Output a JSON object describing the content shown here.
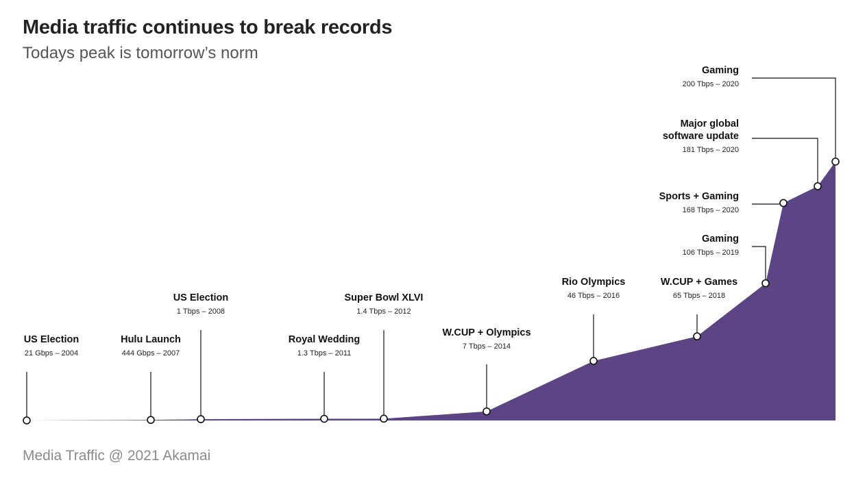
{
  "header": {
    "title": "Media traffic continues to break records",
    "subtitle": "Todays peak is tomorrow’s norm"
  },
  "footer": {
    "source": "Media Traffic @ 2021 Akamai"
  },
  "colors": {
    "area": "#5c4485",
    "text": "#111111",
    "subtitle": "#555555",
    "footer": "#8a8a8a"
  },
  "chart_data": {
    "type": "area",
    "title": "Media traffic continues to break records",
    "subtitle": "Todays peak is tomorrow’s norm",
    "unit": "Tbps",
    "grid": false,
    "points": [
      {
        "event": "US Election",
        "value_label": "21 Gbps – 2004",
        "year": 2004,
        "value_tbps": 0.021
      },
      {
        "event": "Hulu Launch",
        "value_label": "444 Gbps – 2007",
        "year": 2007,
        "value_tbps": 0.444
      },
      {
        "event": "US Election",
        "value_label": "1 Tbps – 2008",
        "year": 2008,
        "value_tbps": 1
      },
      {
        "event": "Royal Wedding",
        "value_label": "1.3 Tbps – 2011",
        "year": 2011,
        "value_tbps": 1.3
      },
      {
        "event": "Super Bowl XLVI",
        "value_label": "1.4 Tbps – 2012",
        "year": 2012,
        "value_tbps": 1.4
      },
      {
        "event": "W.CUP + Olympics",
        "value_label": "7 Tbps – 2014",
        "year": 2014,
        "value_tbps": 7
      },
      {
        "event": "Rio Olympics",
        "value_label": "46 Tbps – 2016",
        "year": 2016,
        "value_tbps": 46
      },
      {
        "event": "W.CUP + Games",
        "value_label": "65 Tbps – 2018",
        "year": 2018,
        "value_tbps": 65
      },
      {
        "event": "Gaming",
        "value_label": "106 Tbps – 2019",
        "year": 2019,
        "value_tbps": 106
      },
      {
        "event": "Sports + Gaming",
        "value_label": "168 Tbps – 2020",
        "year": 2020,
        "value_tbps": 168
      },
      {
        "event": "Major global software update",
        "value_label": "181 Tbps – 2020",
        "year": 2020,
        "value_tbps": 181
      },
      {
        "event": "Gaming",
        "value_label": "200 Tbps – 2020",
        "year": 2020,
        "value_tbps": 200
      }
    ]
  }
}
